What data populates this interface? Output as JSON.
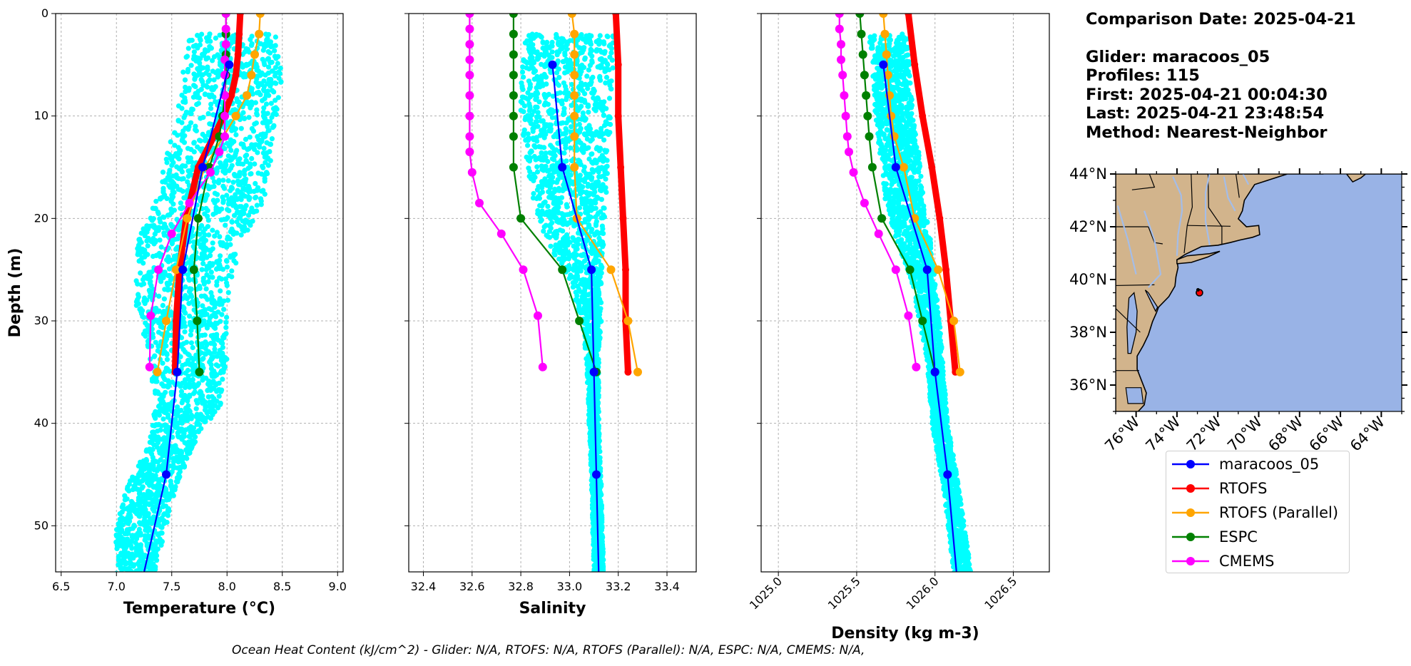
{
  "chart_data": [
    {
      "type": "line",
      "xlabel": "Temperature (°C)",
      "ylabel": "Depth (m)",
      "xlim": [
        6.45,
        9.05
      ],
      "ylim": [
        54.5,
        0
      ],
      "xticks": [
        "6.5",
        "7.0",
        "7.5",
        "8.0",
        "8.5",
        "9.0"
      ],
      "yticks": [
        "0",
        "10",
        "20",
        "30",
        "40",
        "50"
      ],
      "grid": true,
      "series": [
        {
          "name": "maracoos_05",
          "color": "#0000ff",
          "depth": [
            5,
            15,
            25,
            35,
            45,
            55
          ],
          "values": [
            8.02,
            7.78,
            7.6,
            7.55,
            7.45,
            7.24
          ]
        },
        {
          "name": "RTOFS",
          "color": "#ff0000",
          "depth": [
            0,
            2,
            4,
            6,
            8,
            10,
            12,
            15,
            20,
            25,
            30,
            35
          ],
          "values": [
            8.12,
            8.11,
            8.1,
            8.08,
            8.04,
            7.97,
            7.88,
            7.74,
            7.63,
            7.57,
            7.54,
            7.53
          ]
        },
        {
          "name": "RTOFS (Parallel)",
          "color": "#ffa500",
          "depth": [
            0,
            2,
            4,
            6,
            8,
            10,
            15,
            20,
            25,
            30,
            35
          ],
          "values": [
            8.3,
            8.29,
            8.25,
            8.22,
            8.18,
            8.08,
            7.8,
            7.64,
            7.54,
            7.45,
            7.37
          ]
        },
        {
          "name": "ESPC",
          "color": "#008000",
          "depth": [
            0,
            2,
            4,
            6,
            8,
            10,
            12,
            15,
            20,
            25,
            30,
            35
          ],
          "values": [
            7.99,
            7.99,
            7.99,
            7.99,
            7.98,
            7.96,
            7.93,
            7.84,
            7.74,
            7.7,
            7.73,
            7.75
          ]
        },
        {
          "name": "CMEMS",
          "color": "#ff00ff",
          "depth": [
            0,
            1.5,
            3,
            4.5,
            6,
            8,
            10,
            12,
            13.5,
            15.5,
            18.5,
            21.5,
            25,
            29.5,
            34.5
          ],
          "values": [
            7.99,
            7.99,
            7.99,
            7.98,
            7.98,
            7.98,
            7.98,
            7.98,
            7.93,
            7.85,
            7.66,
            7.5,
            7.38,
            7.31,
            7.3
          ]
        }
      ]
    },
    {
      "type": "line",
      "xlabel": "Salinity",
      "xlim": [
        32.34,
        33.52
      ],
      "ylim": [
        54.5,
        0
      ],
      "xticks": [
        "32.4",
        "32.6",
        "32.8",
        "33.0",
        "33.2",
        "33.4"
      ],
      "grid": true,
      "series": [
        {
          "name": "maracoos_05",
          "color": "#0000ff",
          "depth": [
            5,
            15,
            25,
            35,
            45,
            55
          ],
          "values": [
            32.93,
            32.97,
            33.09,
            33.1,
            33.11,
            33.12
          ]
        },
        {
          "name": "RTOFS",
          "color": "#ff0000",
          "depth": [
            0,
            5,
            10,
            15,
            20,
            25,
            30,
            35
          ],
          "values": [
            33.19,
            33.2,
            33.2,
            33.21,
            33.22,
            33.23,
            33.23,
            33.24
          ]
        },
        {
          "name": "RTOFS (Parallel)",
          "color": "#ffa500",
          "depth": [
            0,
            2,
            4,
            6,
            8,
            10,
            12,
            15,
            20,
            25,
            30,
            35
          ],
          "values": [
            33.01,
            33.02,
            33.02,
            33.02,
            33.02,
            33.02,
            33.02,
            33.02,
            33.03,
            33.17,
            33.24,
            33.28
          ]
        },
        {
          "name": "ESPC",
          "color": "#008000",
          "depth": [
            0,
            2,
            4,
            6,
            8,
            10,
            12,
            15,
            20,
            25,
            30,
            35
          ],
          "values": [
            32.77,
            32.77,
            32.77,
            32.77,
            32.77,
            32.77,
            32.77,
            32.77,
            32.8,
            32.97,
            33.04,
            33.11
          ]
        },
        {
          "name": "CMEMS",
          "color": "#ff00ff",
          "depth": [
            0,
            1.5,
            3,
            4.5,
            6,
            8,
            10,
            12,
            13.5,
            15.5,
            18.5,
            21.5,
            25,
            29.5,
            34.5
          ],
          "values": [
            32.59,
            32.59,
            32.59,
            32.59,
            32.59,
            32.59,
            32.59,
            32.59,
            32.59,
            32.6,
            32.63,
            32.72,
            32.81,
            32.87,
            32.89
          ]
        }
      ]
    },
    {
      "type": "line",
      "xlabel": "Density (kg m-3)",
      "xlim": [
        1024.89,
        1026.73
      ],
      "ylim": [
        54.5,
        0
      ],
      "xticks": [
        "1025.0",
        "1025.5",
        "1026.0",
        "1026.5"
      ],
      "grid": true,
      "series": [
        {
          "name": "maracoos_05",
          "color": "#0000ff",
          "depth": [
            5,
            15,
            25,
            35,
            45,
            55
          ],
          "values": [
            1025.67,
            1025.75,
            1025.95,
            1026.0,
            1026.08,
            1026.14
          ]
        },
        {
          "name": "RTOFS",
          "color": "#ff0000",
          "depth": [
            0,
            5,
            10,
            15,
            20,
            25,
            30,
            35
          ],
          "values": [
            1025.83,
            1025.87,
            1025.92,
            1025.98,
            1026.03,
            1026.07,
            1026.1,
            1026.13
          ]
        },
        {
          "name": "RTOFS (Parallel)",
          "color": "#ffa500",
          "depth": [
            0,
            2,
            4,
            6,
            8,
            10,
            12,
            15,
            20,
            25,
            30,
            35
          ],
          "values": [
            1025.67,
            1025.68,
            1025.69,
            1025.7,
            1025.71,
            1025.72,
            1025.74,
            1025.8,
            1025.87,
            1026.02,
            1026.12,
            1026.16
          ]
        },
        {
          "name": "ESPC",
          "color": "#008000",
          "depth": [
            0,
            2,
            4,
            6,
            8,
            10,
            12,
            15,
            20,
            25,
            30,
            35
          ],
          "values": [
            1025.52,
            1025.53,
            1025.54,
            1025.55,
            1025.56,
            1025.57,
            1025.58,
            1025.6,
            1025.66,
            1025.84,
            1025.92,
            1026.0
          ]
        },
        {
          "name": "CMEMS",
          "color": "#ff00ff",
          "depth": [
            0,
            1.5,
            3,
            4.5,
            6,
            8,
            10,
            12,
            13.5,
            15.5,
            18.5,
            21.5,
            25,
            29.5,
            34.5
          ],
          "values": [
            1025.39,
            1025.39,
            1025.4,
            1025.4,
            1025.41,
            1025.42,
            1025.43,
            1025.44,
            1025.45,
            1025.48,
            1025.55,
            1025.64,
            1025.75,
            1025.83,
            1025.88
          ]
        }
      ]
    }
  ],
  "info": {
    "comparison_date": "Comparison Date: 2025-04-21",
    "glider": "Glider: maracoos_05",
    "profiles": "Profiles: 115",
    "first": "First: 2025-04-21 00:04:30",
    "last": "Last: 2025-04-21 23:48:54",
    "method": "Method: Nearest-Neighbor"
  },
  "map": {
    "lat_ticks": [
      "44°N",
      "42°N",
      "40°N",
      "38°N",
      "36°N"
    ],
    "lon_ticks": [
      "76°W",
      "74°W",
      "72°W",
      "70°W",
      "68°W",
      "66°W",
      "64°W"
    ],
    "lat_range": [
      35,
      44
    ],
    "lon_range": [
      -77,
      -63
    ],
    "glider_position": {
      "lon": -72.9,
      "lat": 39.5
    },
    "land_color": "#d2b48c",
    "ocean_color": "#99b3e6"
  },
  "legend": [
    {
      "name": "maracoos_05",
      "color": "#0000ff"
    },
    {
      "name": "RTOFS",
      "color": "#ff0000"
    },
    {
      "name": "RTOFS (Parallel)",
      "color": "#ffa500"
    },
    {
      "name": "ESPC",
      "color": "#008000"
    },
    {
      "name": "CMEMS",
      "color": "#ff00ff"
    }
  ],
  "footer": "Ocean Heat Content (kJ/cm^2) - Glider: N/A,  RTOFS: N/A,  RTOFS (Parallel): N/A,  ESPC: N/A,  CMEMS: N/A,",
  "glider_scatter_color": "#00ffff"
}
